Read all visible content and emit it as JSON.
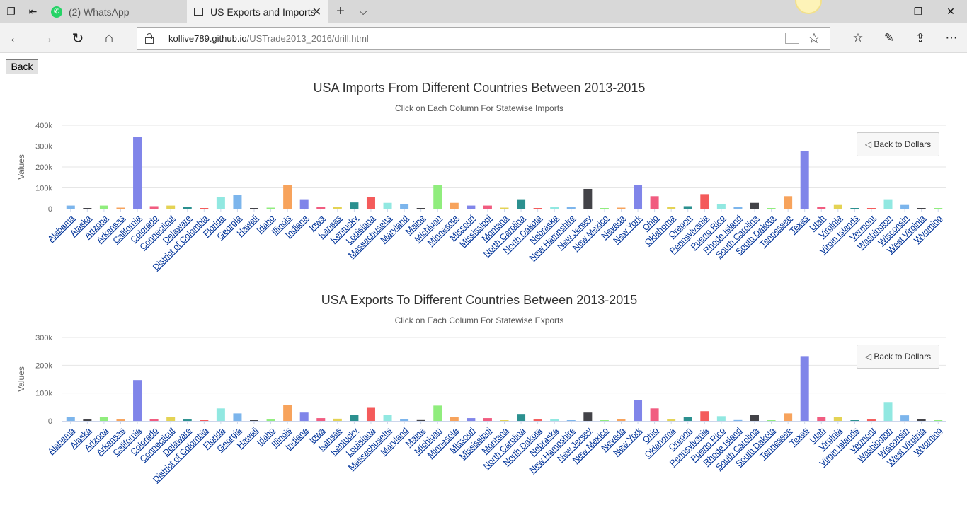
{
  "browser": {
    "tabs": [
      {
        "title": "(2) WhatsApp",
        "icon": "whatsapp-icon"
      },
      {
        "title": "US Exports and Imports",
        "icon": "page-icon"
      }
    ],
    "url_host": "kollive789.github.io",
    "url_path": "/USTrade2013_2016/drill.html"
  },
  "page": {
    "back_label": "Back"
  },
  "chart_data": [
    {
      "type": "bar",
      "title": "USA Imports From Different Countries Between 2013-2015",
      "subtitle": "Click on Each Column For Statewise Imports",
      "ylabel": "Values",
      "ylim": [
        0,
        400000
      ],
      "yticks": [
        "0",
        "100k",
        "200k",
        "300k",
        "400k"
      ],
      "drill_up_label": "◁ Back to Dollars",
      "categories": [
        "Alabama",
        "Alaska",
        "Arizona",
        "Arkansas",
        "California",
        "Colorado",
        "Connecticut",
        "Delaware",
        "District of Colombia",
        "Florida",
        "Georgia",
        "Hawaii",
        "Idaho",
        "Illinois",
        "Indiana",
        "Iowa",
        "Kansas",
        "Kentucky",
        "Louisiana",
        "Massachusetts",
        "Maryland",
        "Maine",
        "Michigan",
        "Minnesota",
        "Missouri",
        "Mississippi",
        "Montana",
        "North Carolina",
        "North Dakota",
        "Nebraska",
        "New Hampshire",
        "New Jersey",
        "New Mexico",
        "Nevada",
        "New York",
        "Ohio",
        "Oklahoma",
        "Oregon",
        "Pennsylvania",
        "Puerto Rico",
        "Rhode Island",
        "South Carolina",
        "South Dakota",
        "Tennessee",
        "Texas",
        "Utah",
        "Virginia",
        "Virgin Islands",
        "Vermont",
        "Washington",
        "Wisconsin",
        "West Virginia",
        "Wyoming"
      ],
      "values": [
        15000,
        1000,
        15000,
        5000,
        345000,
        12000,
        15000,
        8000,
        1000,
        57000,
        67000,
        3000,
        5000,
        115000,
        42000,
        8000,
        8000,
        30000,
        57000,
        28000,
        22000,
        3000,
        115000,
        28000,
        15000,
        15000,
        5000,
        42000,
        3000,
        8000,
        8000,
        95000,
        3000,
        5000,
        115000,
        60000,
        8000,
        12000,
        70000,
        22000,
        8000,
        28000,
        1000,
        60000,
        278000,
        8000,
        18000,
        1000,
        1000,
        42000,
        18000,
        3000,
        1000
      ]
    },
    {
      "type": "bar",
      "title": "USA Exports To Different Countries Between 2013-2015",
      "subtitle": "Click on Each Column For Statewise Exports",
      "ylabel": "Values",
      "ylim": [
        0,
        300000
      ],
      "yticks": [
        "0",
        "100k",
        "200k",
        "300k"
      ],
      "drill_up_label": "◁ Back to Dollars",
      "categories": [
        "Alabama",
        "Alaska",
        "Arizona",
        "Arkansas",
        "California",
        "Colorado",
        "Connecticut",
        "Delaware",
        "District of Colombia",
        "Florida",
        "Georgia",
        "Hawaii",
        "Idaho",
        "Illinois",
        "Indiana",
        "Iowa",
        "Kansas",
        "Kentucky",
        "Louisiana",
        "Massachusetts",
        "Maryland",
        "Maine",
        "Michigan",
        "Minnesota",
        "Missouri",
        "Mississippi",
        "Montana",
        "North Carolina",
        "North Dakota",
        "Nebraska",
        "New Hampshire",
        "New Jersey",
        "New Mexico",
        "Nevada",
        "New York",
        "Ohio",
        "Oklahoma",
        "Oregon",
        "Pennsylvania",
        "Puerto Rico",
        "Rhode Island",
        "South Carolina",
        "South Dakota",
        "Tennessee",
        "Texas",
        "Utah",
        "Virginia",
        "Virgin Islands",
        "Vermont",
        "Washington",
        "Wisconsin",
        "West Virginia",
        "Wyoming"
      ],
      "values": [
        15000,
        5000,
        15000,
        5000,
        147000,
        7000,
        13000,
        5000,
        1000,
        45000,
        27000,
        1000,
        5000,
        57000,
        30000,
        10000,
        8000,
        22000,
        47000,
        22000,
        7000,
        3000,
        55000,
        15000,
        10000,
        10000,
        1000,
        25000,
        5000,
        7000,
        1000,
        30000,
        1000,
        7000,
        75000,
        45000,
        5000,
        13000,
        35000,
        17000,
        3000,
        22000,
        1000,
        27000,
        233000,
        13000,
        13000,
        1000,
        5000,
        68000,
        20000,
        7000,
        1000
      ]
    }
  ],
  "colors": {
    "palette": [
      "#7cb5ec",
      "#434348",
      "#90ed7d",
      "#f7a35c",
      "#8085e9",
      "#f15c80",
      "#e4d354",
      "#2b908f",
      "#f45b5b",
      "#91e8e1"
    ],
    "link": "#003399"
  }
}
